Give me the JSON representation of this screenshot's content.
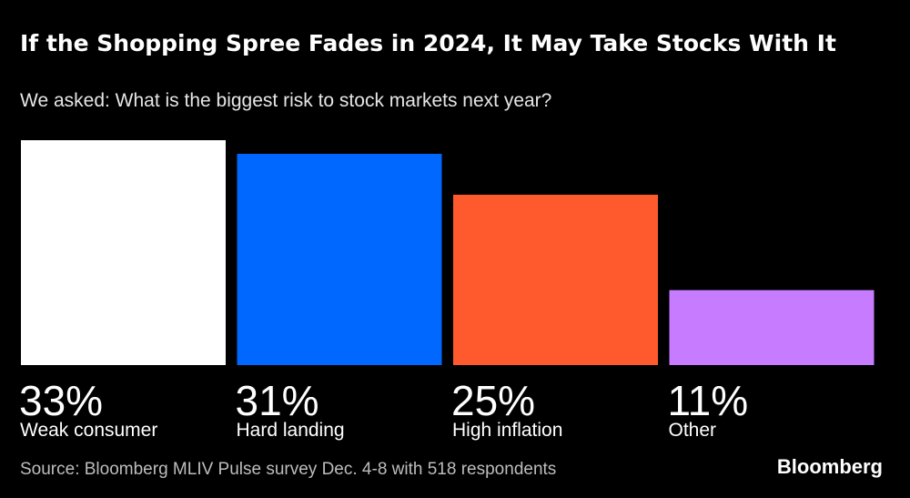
{
  "chart_data": {
    "type": "bar",
    "title": "If the Shopping Spree Fades in 2024, It May Take Stocks With It",
    "subtitle": "We asked: What is the biggest risk to stock markets next year?",
    "categories": [
      "Weak consumer",
      "Hard landing",
      "High inflation",
      "Other"
    ],
    "values": [
      33,
      31,
      25,
      11
    ],
    "value_labels": [
      "33%",
      "31%",
      "25%",
      "11%"
    ],
    "colors": [
      "#ffffff",
      "#0068ff",
      "#ff5a2d",
      "#c77bff"
    ],
    "unit": "%",
    "xlabel": "",
    "ylabel": "",
    "ylim": [
      0,
      33
    ]
  },
  "footer": {
    "source": "Source: Bloomberg MLIV Pulse survey Dec. 4-8 with 518 respondents",
    "brand": "Bloomberg"
  }
}
